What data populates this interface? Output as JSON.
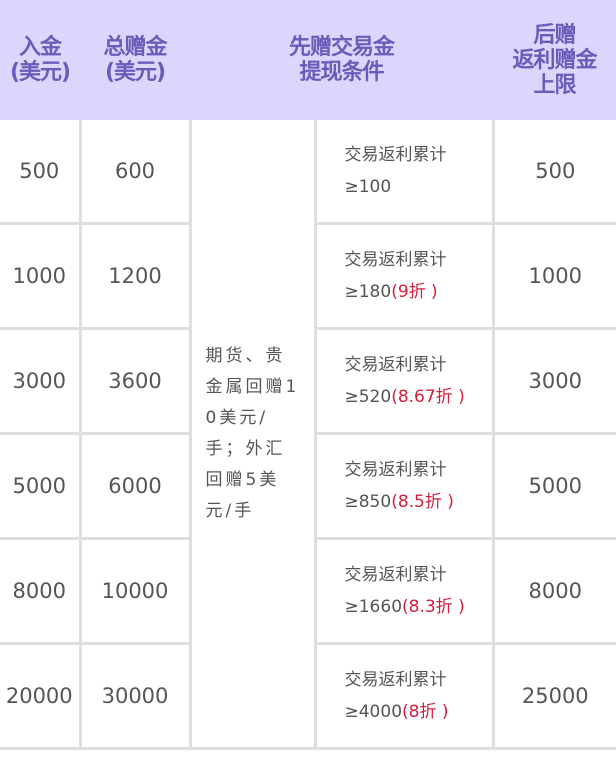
{
  "header": {
    "col1": [
      "入金",
      "(美元)"
    ],
    "col2": [
      "总赠金",
      "(美元)"
    ],
    "col3": [
      "先赠交易金",
      "提现条件"
    ],
    "col5": [
      "后赠",
      "返利赠金",
      "上限"
    ]
  },
  "note": "期货、贵金属回赠10美元/手；外汇回赠5美元/手",
  "condition_label": "交易返利累计",
  "rows": [
    {
      "deposit": "500",
      "bonus": "600",
      "threshold": "≥100",
      "discount": "",
      "cap": "500"
    },
    {
      "deposit": "1000",
      "bonus": "1200",
      "threshold": "≥180",
      "discount": "(9折 )",
      "cap": "1000"
    },
    {
      "deposit": "3000",
      "bonus": "3600",
      "threshold": "≥520",
      "discount": "(8.67折 )",
      "cap": "3000"
    },
    {
      "deposit": "5000",
      "bonus": "6000",
      "threshold": "≥850",
      "discount": "(8.5折 )",
      "cap": "5000"
    },
    {
      "deposit": "8000",
      "bonus": "10000",
      "threshold": "≥1660",
      "discount": "(8.3折 )",
      "cap": "8000"
    },
    {
      "deposit": "20000",
      "bonus": "30000",
      "threshold": "≥4000",
      "discount": "(8折 )",
      "cap": "25000"
    }
  ],
  "colors": {
    "header_bg": "#dcd6fc",
    "header_text": "#6a5cb8",
    "discount": "#d21f3c"
  }
}
